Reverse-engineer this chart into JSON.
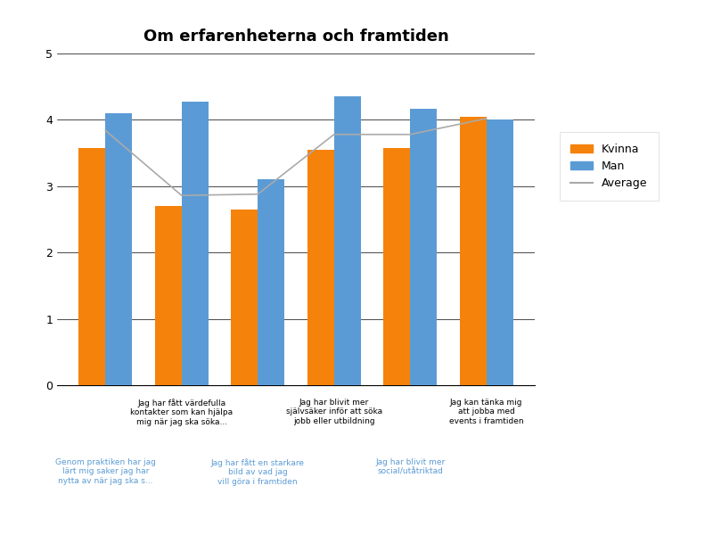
{
  "title": "Om erfarenheterna och framtiden",
  "cat_upper": [
    "Jag har fått värdefulla\nkontakter som kan hjälpa\nmig när jag ska söka...",
    "Jag har blivit mer\nsjälvsäker inför att söka\njobb eller utbildning",
    "Jag kan tänka mig\natt jobba med\nevents i framtiden"
  ],
  "cat_lower": [
    "Genom praktiken har jag\nlärt mig saker jag har\nnytta av när jag ska s...",
    "Jag har fått en starkare\nbild av vad jag\nvill göra i framtiden",
    "Jag har blivit mer\nsocial/utåtriktad"
  ],
  "kvinna": [
    3.58,
    2.7,
    2.65,
    3.55,
    3.58,
    4.05
  ],
  "man": [
    4.1,
    4.27,
    3.1,
    4.35,
    4.17,
    4.0
  ],
  "average": [
    3.84,
    2.86,
    2.88,
    3.78,
    3.78,
    4.02
  ],
  "kvinna_color": "#f5820a",
  "man_color": "#5b9bd5",
  "avg_color": "#aaaaaa",
  "ylim": [
    0,
    5
  ],
  "yticks": [
    0,
    1,
    2,
    3,
    4,
    5
  ],
  "bar_width": 0.35,
  "background_color": "#ffffff",
  "title_fontsize": 13,
  "label_color_upper": "#000000",
  "label_color_lower": "#5b9bd5"
}
